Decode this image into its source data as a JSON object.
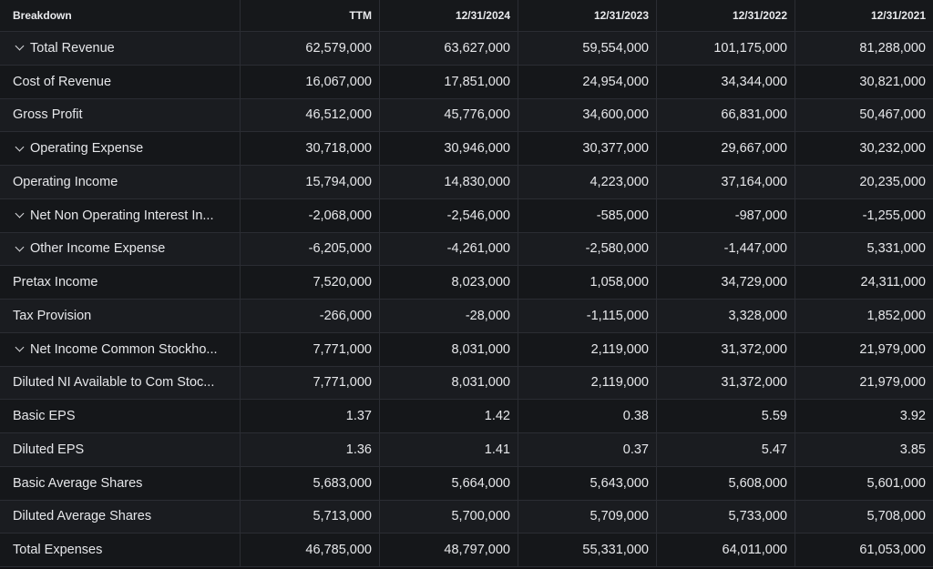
{
  "header": {
    "breakdown": "Breakdown",
    "columns": [
      "TTM",
      "12/31/2024",
      "12/31/2023",
      "12/31/2022",
      "12/31/2021"
    ]
  },
  "rows": [
    {
      "label": "Total Revenue",
      "expandable": true,
      "values": [
        "62,579,000",
        "63,627,000",
        "59,554,000",
        "101,175,000",
        "81,288,000"
      ]
    },
    {
      "label": "Cost of Revenue",
      "expandable": false,
      "values": [
        "16,067,000",
        "17,851,000",
        "24,954,000",
        "34,344,000",
        "30,821,000"
      ]
    },
    {
      "label": "Gross Profit",
      "expandable": false,
      "values": [
        "46,512,000",
        "45,776,000",
        "34,600,000",
        "66,831,000",
        "50,467,000"
      ]
    },
    {
      "label": "Operating Expense",
      "expandable": true,
      "values": [
        "30,718,000",
        "30,946,000",
        "30,377,000",
        "29,667,000",
        "30,232,000"
      ]
    },
    {
      "label": "Operating Income",
      "expandable": false,
      "values": [
        "15,794,000",
        "14,830,000",
        "4,223,000",
        "37,164,000",
        "20,235,000"
      ]
    },
    {
      "label": "Net Non Operating Interest In...",
      "expandable": true,
      "values": [
        "-2,068,000",
        "-2,546,000",
        "-585,000",
        "-987,000",
        "-1,255,000"
      ]
    },
    {
      "label": "Other Income Expense",
      "expandable": true,
      "values": [
        "-6,205,000",
        "-4,261,000",
        "-2,580,000",
        "-1,447,000",
        "5,331,000"
      ]
    },
    {
      "label": "Pretax Income",
      "expandable": false,
      "values": [
        "7,520,000",
        "8,023,000",
        "1,058,000",
        "34,729,000",
        "24,311,000"
      ]
    },
    {
      "label": "Tax Provision",
      "expandable": false,
      "values": [
        "-266,000",
        "-28,000",
        "-1,115,000",
        "3,328,000",
        "1,852,000"
      ]
    },
    {
      "label": "Net Income Common Stockho...",
      "expandable": true,
      "values": [
        "7,771,000",
        "8,031,000",
        "2,119,000",
        "31,372,000",
        "21,979,000"
      ]
    },
    {
      "label": "Diluted NI Available to Com Stoc...",
      "expandable": false,
      "values": [
        "7,771,000",
        "8,031,000",
        "2,119,000",
        "31,372,000",
        "21,979,000"
      ]
    },
    {
      "label": "Basic EPS",
      "expandable": false,
      "values": [
        "1.37",
        "1.42",
        "0.38",
        "5.59",
        "3.92"
      ]
    },
    {
      "label": "Diluted EPS",
      "expandable": false,
      "values": [
        "1.36",
        "1.41",
        "0.37",
        "5.47",
        "3.85"
      ]
    },
    {
      "label": "Basic Average Shares",
      "expandable": false,
      "values": [
        "5,683,000",
        "5,664,000",
        "5,643,000",
        "5,608,000",
        "5,601,000"
      ]
    },
    {
      "label": "Diluted Average Shares",
      "expandable": false,
      "values": [
        "5,713,000",
        "5,700,000",
        "5,709,000",
        "5,733,000",
        "5,708,000"
      ]
    },
    {
      "label": "Total Expenses",
      "expandable": false,
      "values": [
        "46,785,000",
        "48,797,000",
        "55,331,000",
        "64,011,000",
        "61,053,000"
      ]
    }
  ]
}
